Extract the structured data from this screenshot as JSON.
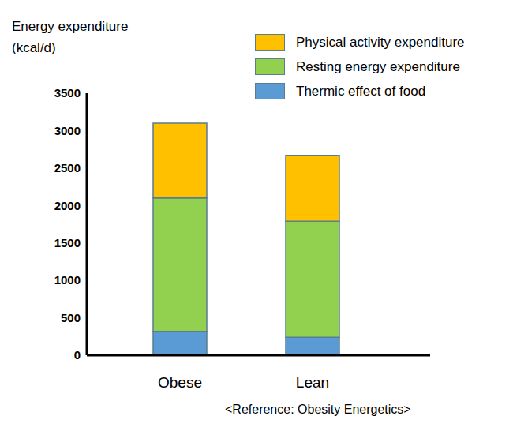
{
  "chart_data": {
    "type": "bar",
    "y_label": [
      "Energy expenditure",
      "(kcal/d)"
    ],
    "annotations": [
      "<Reference: Obesity Energetics>"
    ],
    "categories": [
      "Obese",
      "Lean"
    ],
    "series": [
      {
        "name": "Physical activity expenditure",
        "color": "#ffc000",
        "values": [
          1000,
          880
        ]
      },
      {
        "name": "Resting energy expenditure",
        "color": "#92d050",
        "values": [
          1780,
          1550
        ]
      },
      {
        "name": "Thermic effect of food",
        "color": "#5b9bd5",
        "values": [
          320,
          240
        ]
      }
    ],
    "stacked": true,
    "ylim": [
      0,
      3500
    ],
    "yticks": [
      0,
      500,
      1000,
      1500,
      2000,
      2500,
      3000,
      3500
    ],
    "grid": false,
    "legend": "upper right"
  }
}
